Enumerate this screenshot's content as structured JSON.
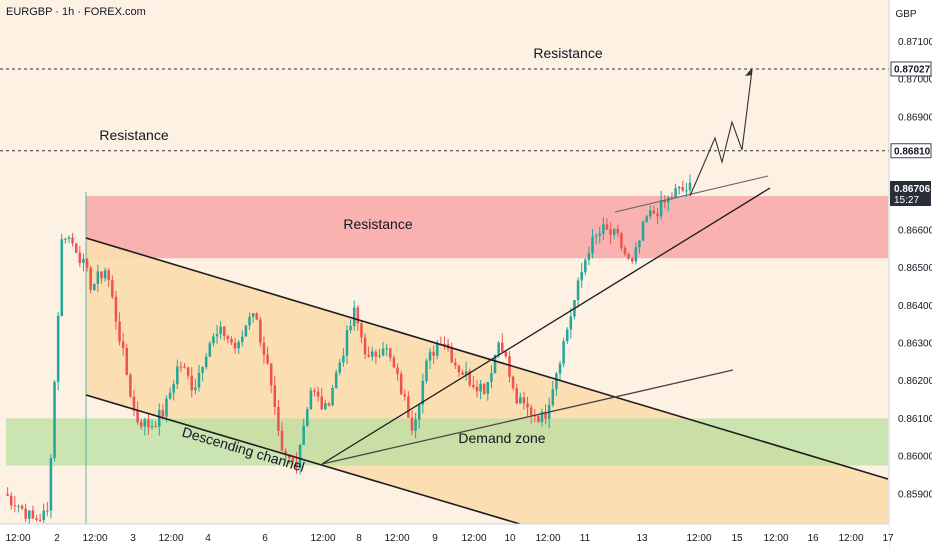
{
  "header": {
    "ticker": "EURGBP · 1h · FOREX.com"
  },
  "axis": {
    "currency": "GBP",
    "price_ticks": [
      "0.87100",
      "0.87000",
      "0.86900",
      "0.86600",
      "0.86500",
      "0.86400",
      "0.86300",
      "0.86200",
      "0.86100",
      "0.86000",
      "0.85900"
    ],
    "time_ticks": [
      "12:00",
      "2",
      "12:00",
      "3",
      "12:00",
      "4",
      "6",
      "12:00",
      "8",
      "12:00",
      "9",
      "12:00",
      "10",
      "12:00",
      "11",
      "13",
      "12:00",
      "15",
      "12:00",
      "16",
      "12:00",
      "17"
    ]
  },
  "price_labels": {
    "upper_level": "0.87027",
    "lower_level": "0.86810",
    "current_price": "0.86706",
    "countdown": "15:27"
  },
  "annotations": {
    "resistance_top": "Resistance",
    "resistance_mid": "Resistance",
    "resistance_zone": "Resistance",
    "descending_channel": "Descending channel",
    "demand_zone": "Demand zone"
  },
  "colors": {
    "bull": "#26a69a",
    "bear": "#ef5350",
    "resistance_zone": "#f8a7a7",
    "demand_zone": "#b8dfa2",
    "channel_fill": "#fcdcad"
  },
  "chart_data": {
    "type": "candlestick",
    "symbol": "EURGBP",
    "timeframe": "1h",
    "currency": "GBP",
    "ylim": [
      0.8582,
      0.8721
    ],
    "horizontal_levels": [
      0.87027,
      0.8681
    ],
    "resistance_zone": [
      0.86525,
      0.8669
    ],
    "demand_zone": [
      0.85975,
      0.861
    ],
    "current_price": 0.86706,
    "close_path": [
      0.859,
      0.8587,
      0.8583,
      0.8585,
      0.866,
      0.8655,
      0.8645,
      0.865,
      0.863,
      0.861,
      0.8608,
      0.8612,
      0.8625,
      0.8618,
      0.863,
      0.8633,
      0.8628,
      0.864,
      0.8625,
      0.86,
      0.8598,
      0.8618,
      0.8612,
      0.8625,
      0.8638,
      0.8625,
      0.863,
      0.862,
      0.8608,
      0.8625,
      0.8632,
      0.8624,
      0.862,
      0.8618,
      0.8632,
      0.8615,
      0.8612,
      0.861,
      0.8625,
      0.864,
      0.8655,
      0.866,
      0.8658,
      0.865,
      0.8663,
      0.8666,
      0.867,
      0.8671
    ]
  }
}
